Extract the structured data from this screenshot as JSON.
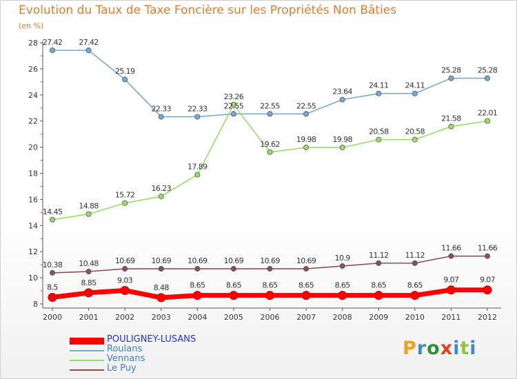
{
  "page": {
    "title": "Evolution du Taux de Taxe Foncière sur les Propriétés Non Bâties",
    "unit": "(en %)"
  },
  "brand": {
    "letters": [
      "P",
      "r",
      "o",
      "x",
      "i",
      "t",
      "i"
    ],
    "colors": [
      "#f0a21c",
      "#3b8bd2",
      "#2f8f3b",
      "#e23f24",
      "#3b8bd2",
      "#8cc63f",
      "#3b8bd2"
    ]
  },
  "chart_data": {
    "type": "line",
    "title": "Evolution du Taux de Taxe Foncière sur les Propriétés Non Bâties",
    "ylabel": "(en %)",
    "x": [
      2000,
      2001,
      2002,
      2003,
      2004,
      2005,
      2006,
      2007,
      2008,
      2009,
      2010,
      2011,
      2012
    ],
    "ylim": [
      8,
      28
    ],
    "yticks": [
      8,
      10,
      12,
      14,
      16,
      18,
      20,
      22,
      24,
      26,
      28
    ],
    "grid": false,
    "legend": "bottom-left",
    "series": [
      {
        "name": "POULIGNEY-LUSANS",
        "color": "#ff0000",
        "values": [
          8.5,
          8.85,
          9.03,
          8.48,
          8.65,
          8.65,
          8.65,
          8.65,
          8.65,
          8.65,
          8.65,
          9.07,
          9.07
        ],
        "labels": [
          "8.5",
          "8.85",
          "9.03",
          "8.48",
          "8.65",
          "8.65",
          "8.65",
          "8.65",
          "8.65",
          "8.65",
          "8.65",
          "9.07",
          "9.07"
        ]
      },
      {
        "name": "Roulans",
        "color": "#76a9d4",
        "values": [
          27.42,
          27.42,
          25.19,
          22.33,
          22.33,
          22.55,
          22.55,
          22.55,
          23.64,
          24.11,
          24.11,
          25.28,
          25.28
        ],
        "labels": [
          "27.42",
          "27.42",
          "25.19",
          "22.33",
          "22.33",
          "22.55",
          "22.55",
          "22.55",
          "23.64",
          "24.11",
          "24.11",
          "25.28",
          "25.28"
        ]
      },
      {
        "name": "Vennans",
        "color": "#99dd66",
        "values": [
          14.45,
          14.88,
          15.72,
          16.23,
          17.89,
          23.26,
          19.62,
          19.98,
          19.98,
          20.58,
          20.58,
          21.58,
          22.01
        ],
        "labels": [
          "14.45",
          "14.88",
          "15.72",
          "16.23",
          "17.89",
          "23.26",
          "19.62",
          "19.98",
          "19.98",
          "20.58",
          "20.58",
          "21.58",
          "22.01"
        ]
      },
      {
        "name": "Le Puy",
        "color": "#8c5050",
        "values": [
          10.38,
          10.48,
          10.69,
          10.69,
          10.69,
          10.69,
          10.69,
          10.69,
          10.9,
          11.12,
          11.12,
          11.66,
          11.66
        ],
        "labels": [
          "10.38",
          "10.48",
          "10.69",
          "10.69",
          "10.69",
          "10.69",
          "10.69",
          "10.69",
          "10.9",
          "11.12",
          "11.12",
          "11.66",
          "11.66"
        ]
      }
    ]
  }
}
